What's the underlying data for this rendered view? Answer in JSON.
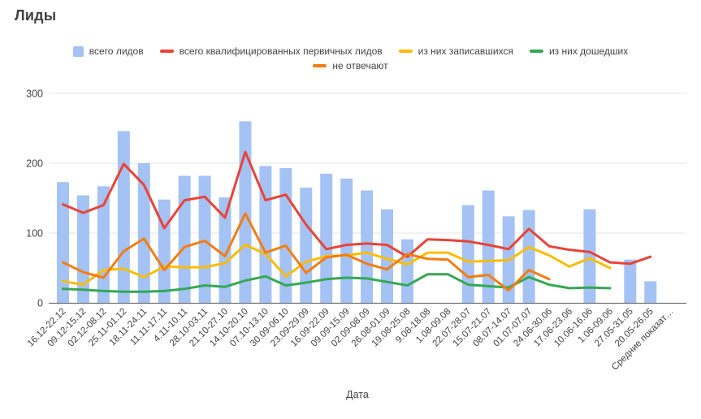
{
  "title": "Лиды",
  "axis": {
    "x_title": "Дата",
    "y_ticks": [
      0,
      100,
      200,
      300
    ]
  },
  "colors": {
    "bar_blue": "#a4c2f4",
    "line_red": "#ea4335",
    "line_yellow": "#fbbc04",
    "line_green": "#34a853",
    "line_orange": "#f57c0f",
    "gridline": "#e6e6e6",
    "axis_line": "#757575",
    "text": "#424242"
  },
  "chart_data": {
    "type": "combo",
    "title": "Лиды",
    "xlabel": "Дата",
    "ylim": [
      0,
      300
    ],
    "grid": true,
    "legend_position": "top",
    "categories": [
      "16.12-22.12",
      "09.12-15.12",
      "02.12-08.12",
      "25.11-01.12",
      "18.11-24.11",
      "11.11-17.11",
      "4.11-10.11",
      "28.10-03.11",
      "21.10-27.10",
      "14.10-20.10",
      "07.10-13.10",
      "30.09-06.10",
      "23.09-29.09",
      "16.09-22.09",
      "09.09-15.09",
      "02.09-08.09",
      "26.08-01.09",
      "19.08-25.08",
      "9.08-18.08",
      "1.08-09.08",
      "22.07-28.07",
      "15.07-21.07",
      "08.07-14.07",
      "01.07-07.07",
      "24.06-30.06",
      "17.06-23.06",
      "10.06-16.06",
      "1.06-09.06",
      "27.05-31.05",
      "20.05-26.05",
      "Средние показат…"
    ],
    "series": [
      {
        "id": "total-leads",
        "name": "всего лидов",
        "type": "bar",
        "color": "#a4c2f4",
        "values": [
          173,
          154,
          167,
          246,
          200,
          148,
          182,
          182,
          151,
          260,
          196,
          193,
          165,
          185,
          178,
          161,
          134,
          91,
          null,
          null,
          140,
          161,
          124,
          133,
          null,
          null,
          134,
          null,
          62,
          31,
          null
        ]
      },
      {
        "id": "qualified-leads",
        "name": "всего квалифицированных первичных лидов",
        "type": "line",
        "color": "#ea4335",
        "values": [
          141,
          129,
          140,
          199,
          169,
          107,
          147,
          152,
          122,
          216,
          147,
          155,
          112,
          77,
          83,
          85,
          83,
          66,
          91,
          90,
          88,
          83,
          77,
          106,
          81,
          76,
          73,
          58,
          56,
          66,
          null
        ]
      },
      {
        "id": "signed-up",
        "name": "из них записавшихся",
        "type": "line",
        "color": "#fbbc04",
        "values": [
          31,
          26,
          47,
          49,
          37,
          52,
          51,
          51,
          57,
          83,
          70,
          38,
          59,
          67,
          68,
          72,
          63,
          55,
          72,
          72,
          59,
          60,
          61,
          80,
          68,
          52,
          64,
          50,
          null,
          null,
          null
        ]
      },
      {
        "id": "arrived",
        "name": "из них дошедших",
        "type": "line",
        "color": "#34a853",
        "values": [
          20,
          19,
          17,
          16,
          16,
          17,
          20,
          25,
          23,
          32,
          38,
          25,
          29,
          34,
          36,
          35,
          30,
          25,
          41,
          41,
          26,
          24,
          22,
          37,
          26,
          21,
          22,
          21,
          null,
          null,
          null
        ]
      },
      {
        "id": "no-answer",
        "name": "не отвечают",
        "type": "line",
        "color": "#f57c0f",
        "values": [
          58,
          44,
          36,
          74,
          92,
          47,
          80,
          89,
          67,
          128,
          72,
          82,
          43,
          65,
          69,
          56,
          48,
          70,
          63,
          62,
          37,
          40,
          18,
          47,
          34,
          null,
          null,
          null,
          null,
          null,
          null
        ]
      }
    ],
    "legend_rows": [
      [
        "total-leads",
        "qualified-leads",
        "signed-up",
        "arrived"
      ],
      [
        "no-answer"
      ]
    ]
  }
}
